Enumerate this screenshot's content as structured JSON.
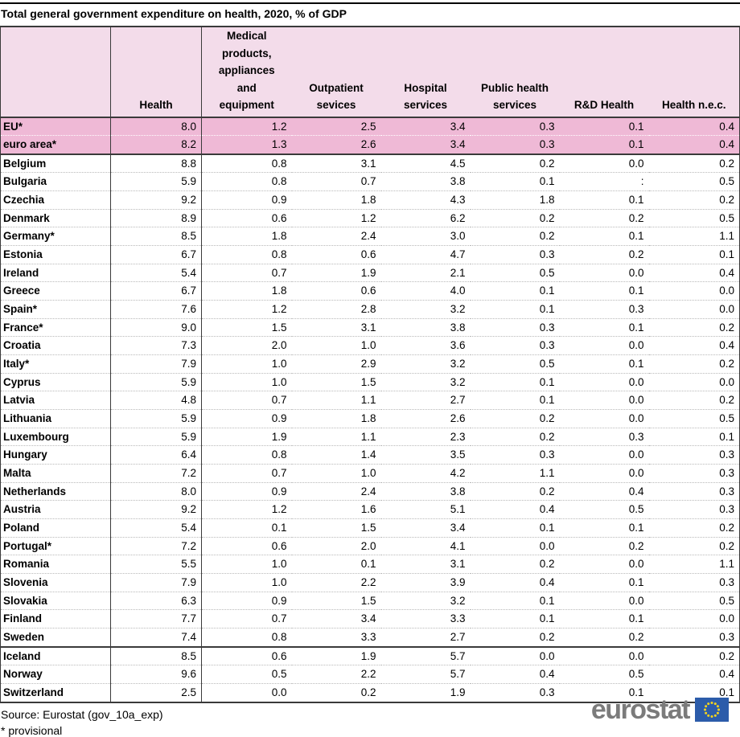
{
  "chart_data": {
    "type": "table",
    "title": "Total general government expenditure on health, 2020, % of GDP",
    "col_headers": [
      "Health",
      "Medical\nproducts,\nappliances\nand\nequipment",
      "Outpatient\nsevices",
      "Hospital\nservices",
      "Public health\nservices",
      "R&D Health",
      "Health n.e.c."
    ],
    "rows": [
      {
        "name": "EU*",
        "group": "aggregate",
        "values": [
          "8.0",
          "1.2",
          "2.5",
          "3.4",
          "0.3",
          "0.1",
          "0.4"
        ]
      },
      {
        "name": "euro area*",
        "group": "aggregate",
        "values": [
          "8.2",
          "1.3",
          "2.6",
          "3.4",
          "0.3",
          "0.1",
          "0.4"
        ]
      },
      {
        "name": "Belgium",
        "group": "eu",
        "values": [
          "8.8",
          "0.8",
          "3.1",
          "4.5",
          "0.2",
          "0.0",
          "0.2"
        ]
      },
      {
        "name": "Bulgaria",
        "group": "eu",
        "values": [
          "5.9",
          "0.8",
          "0.7",
          "3.8",
          "0.1",
          ":",
          "0.5"
        ]
      },
      {
        "name": "Czechia",
        "group": "eu",
        "values": [
          "9.2",
          "0.9",
          "1.8",
          "4.3",
          "1.8",
          "0.1",
          "0.2"
        ]
      },
      {
        "name": "Denmark",
        "group": "eu",
        "values": [
          "8.9",
          "0.6",
          "1.2",
          "6.2",
          "0.2",
          "0.2",
          "0.5"
        ]
      },
      {
        "name": "Germany*",
        "group": "eu",
        "values": [
          "8.5",
          "1.8",
          "2.4",
          "3.0",
          "0.2",
          "0.1",
          "1.1"
        ]
      },
      {
        "name": "Estonia",
        "group": "eu",
        "values": [
          "6.7",
          "0.8",
          "0.6",
          "4.7",
          "0.3",
          "0.2",
          "0.1"
        ]
      },
      {
        "name": "Ireland",
        "group": "eu",
        "values": [
          "5.4",
          "0.7",
          "1.9",
          "2.1",
          "0.5",
          "0.0",
          "0.4"
        ]
      },
      {
        "name": "Greece",
        "group": "eu",
        "values": [
          "6.7",
          "1.8",
          "0.6",
          "4.0",
          "0.1",
          "0.1",
          "0.0"
        ]
      },
      {
        "name": "Spain*",
        "group": "eu",
        "values": [
          "7.6",
          "1.2",
          "2.8",
          "3.2",
          "0.1",
          "0.3",
          "0.0"
        ]
      },
      {
        "name": "France*",
        "group": "eu",
        "values": [
          "9.0",
          "1.5",
          "3.1",
          "3.8",
          "0.3",
          "0.1",
          "0.2"
        ]
      },
      {
        "name": "Croatia",
        "group": "eu",
        "values": [
          "7.3",
          "2.0",
          "1.0",
          "3.6",
          "0.3",
          "0.0",
          "0.4"
        ]
      },
      {
        "name": "Italy*",
        "group": "eu",
        "values": [
          "7.9",
          "1.0",
          "2.9",
          "3.2",
          "0.5",
          "0.1",
          "0.2"
        ]
      },
      {
        "name": "Cyprus",
        "group": "eu",
        "values": [
          "5.9",
          "1.0",
          "1.5",
          "3.2",
          "0.1",
          "0.0",
          "0.0"
        ]
      },
      {
        "name": "Latvia",
        "group": "eu",
        "values": [
          "4.8",
          "0.7",
          "1.1",
          "2.7",
          "0.1",
          "0.0",
          "0.2"
        ]
      },
      {
        "name": "Lithuania",
        "group": "eu",
        "values": [
          "5.9",
          "0.9",
          "1.8",
          "2.6",
          "0.2",
          "0.0",
          "0.5"
        ]
      },
      {
        "name": "Luxembourg",
        "group": "eu",
        "values": [
          "5.9",
          "1.9",
          "1.1",
          "2.3",
          "0.2",
          "0.3",
          "0.1"
        ]
      },
      {
        "name": "Hungary",
        "group": "eu",
        "values": [
          "6.4",
          "0.8",
          "1.4",
          "3.5",
          "0.3",
          "0.0",
          "0.3"
        ]
      },
      {
        "name": "Malta",
        "group": "eu",
        "values": [
          "7.2",
          "0.7",
          "1.0",
          "4.2",
          "1.1",
          "0.0",
          "0.3"
        ]
      },
      {
        "name": "Netherlands",
        "group": "eu",
        "values": [
          "8.0",
          "0.9",
          "2.4",
          "3.8",
          "0.2",
          "0.4",
          "0.3"
        ]
      },
      {
        "name": "Austria",
        "group": "eu",
        "values": [
          "9.2",
          "1.2",
          "1.6",
          "5.1",
          "0.4",
          "0.5",
          "0.3"
        ]
      },
      {
        "name": "Poland",
        "group": "eu",
        "values": [
          "5.4",
          "0.1",
          "1.5",
          "3.4",
          "0.1",
          "0.1",
          "0.2"
        ]
      },
      {
        "name": "Portugal*",
        "group": "eu",
        "values": [
          "7.2",
          "0.6",
          "2.0",
          "4.1",
          "0.0",
          "0.2",
          "0.2"
        ]
      },
      {
        "name": "Romania",
        "group": "eu",
        "values": [
          "5.5",
          "1.0",
          "0.1",
          "3.1",
          "0.2",
          "0.0",
          "1.1"
        ]
      },
      {
        "name": "Slovenia",
        "group": "eu",
        "values": [
          "7.9",
          "1.0",
          "2.2",
          "3.9",
          "0.4",
          "0.1",
          "0.3"
        ]
      },
      {
        "name": "Slovakia",
        "group": "eu",
        "values": [
          "6.3",
          "0.9",
          "1.5",
          "3.2",
          "0.1",
          "0.0",
          "0.5"
        ]
      },
      {
        "name": "Finland",
        "group": "eu",
        "values": [
          "7.7",
          "0.7",
          "3.4",
          "3.3",
          "0.1",
          "0.1",
          "0.0"
        ]
      },
      {
        "name": "Sweden",
        "group": "eu",
        "values": [
          "7.4",
          "0.8",
          "3.3",
          "2.7",
          "0.2",
          "0.2",
          "0.3"
        ]
      },
      {
        "name": "Iceland",
        "group": "efta",
        "values": [
          "8.5",
          "0.6",
          "1.9",
          "5.7",
          "0.0",
          "0.0",
          "0.2"
        ]
      },
      {
        "name": "Norway",
        "group": "efta",
        "values": [
          "9.6",
          "0.5",
          "2.2",
          "5.7",
          "0.4",
          "0.5",
          "0.4"
        ]
      },
      {
        "name": "Switzerland",
        "group": "efta",
        "values": [
          "2.5",
          "0.0",
          "0.2",
          "1.9",
          "0.3",
          "0.1",
          "0.1"
        ]
      }
    ]
  },
  "footer": {
    "source": "Source: Eurostat (gov_10a_exp)",
    "note": "* provisional"
  },
  "logo": {
    "text": "eurostat"
  },
  "colors": {
    "header_bg": "#f3dcea",
    "highlight_bg": "#efb9d6",
    "rule_dark": "#3a3a3a",
    "dotted_separator": "#b9b9b9",
    "logo_gray": "#7b7b7b",
    "flag_blue": "#2c5caa",
    "star_yellow": "#f7d41c"
  }
}
